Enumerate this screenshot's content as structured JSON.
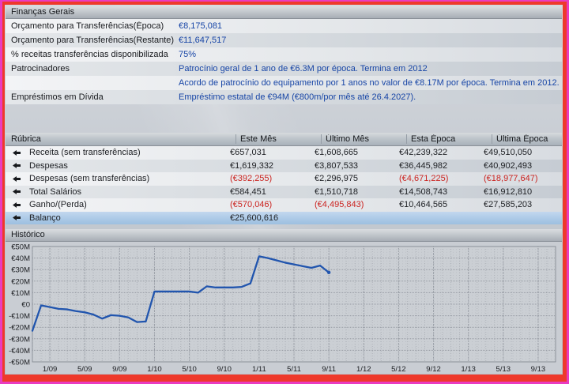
{
  "colors": {
    "value_text": "#1745a6",
    "negative_text": "#cb2420",
    "balance_row_highlight": "#aecbe8",
    "chart_line": "#2155ae"
  },
  "finances_panel": {
    "title": "Finanças Gerais",
    "rows": [
      {
        "label": "Orçamento para Transferências(Época)",
        "value": "€8,175,081"
      },
      {
        "label": "Orçamento para Transferências(Restante)",
        "value": "€11,647,517"
      },
      {
        "label": "% receitas transferências disponibilizada",
        "value": "75%"
      },
      {
        "label": "Patrocinadores",
        "value": "Patrocínio geral de 1 ano de €6.3M por época. Termina em 2012"
      },
      {
        "label": "",
        "value": "Acordo de patrocínio do equipamento por 1 anos no valor de €8.17M por época. Termina em 2012."
      },
      {
        "label": "Empréstimos em Dívida",
        "value": "Empréstimo estatal de €94M (€800m/por mês até 26.4.2027)."
      }
    ]
  },
  "table": {
    "columns": [
      "Rúbrica",
      "Este Mês",
      "Último Mês",
      "Esta Época",
      "Última Época"
    ],
    "rows": [
      {
        "label": "Receita (sem transferências)",
        "values": [
          "€657,031",
          "€1,608,665",
          "€42,239,322",
          "€49,510,050"
        ]
      },
      {
        "label": "Despesas",
        "values": [
          "€1,619,332",
          "€3,807,533",
          "€36,445,982",
          "€40,902,493"
        ]
      },
      {
        "label": "Despesas (sem transferências)",
        "values": [
          "(€392,255)",
          "€2,296,975",
          "(€4,671,225)",
          "(€18,977,647)"
        ]
      },
      {
        "label": "Total Salários",
        "values": [
          "€584,451",
          "€1,510,718",
          "€14,508,743",
          "€16,912,810"
        ]
      },
      {
        "label": "Ganho/(Perda)",
        "values": [
          "(€570,046)",
          "(€4,495,843)",
          "€10,464,565",
          "€27,585,203"
        ]
      },
      {
        "label": "Balanço",
        "values": [
          "€25,600,616",
          "",
          "",
          ""
        ]
      }
    ]
  },
  "history": {
    "title": "Histórico"
  },
  "chart_data": {
    "type": "line",
    "title": "Histórico",
    "xlabel": "",
    "ylabel": "",
    "ylim": [
      -50,
      50
    ],
    "y_unit": "€M",
    "grid": true,
    "x_total_months": 60,
    "x_start_month_label": "11/08",
    "x_tick_first_month_index": 2,
    "x_tick_step_months": 4,
    "x_tick_labels": [
      "1/09",
      "5/09",
      "9/09",
      "1/10",
      "5/10",
      "9/10",
      "1/11",
      "5/11",
      "9/11",
      "1/12",
      "5/12",
      "9/12",
      "1/13",
      "5/13",
      "9/13"
    ],
    "y_tick_labels": [
      "€50M",
      "€40M",
      "€30M",
      "€20M",
      "€10M",
      "€0",
      "-€10M",
      "-€20M",
      "-€30M",
      "-€40M",
      "-€50M"
    ],
    "y_tick_values": [
      50,
      40,
      30,
      20,
      10,
      0,
      -10,
      -20,
      -30,
      -40,
      -50
    ],
    "series": [
      {
        "name": "Balanço",
        "color": "#2155ae",
        "month_labels": [
          "11/08",
          "12/08",
          "1/09",
          "2/09",
          "3/09",
          "4/09",
          "5/09",
          "6/09",
          "7/09",
          "8/09",
          "9/09",
          "10/09",
          "11/09",
          "12/09",
          "1/10",
          "2/10",
          "3/10",
          "4/10",
          "5/10",
          "6/10",
          "7/10",
          "8/10",
          "9/10",
          "10/10",
          "11/10",
          "12/10",
          "1/11",
          "2/11",
          "3/11",
          "4/11",
          "5/11",
          "6/11",
          "7/11",
          "8/11",
          "9/11"
        ],
        "values_meur": [
          -23,
          -1,
          -2.5,
          -4,
          -4.5,
          -6,
          -7,
          -9,
          -12.5,
          -9.5,
          -10,
          -11.5,
          -15.5,
          -15,
          11,
          11,
          11,
          11,
          11,
          10,
          15.5,
          14.5,
          14.5,
          14.5,
          15,
          18,
          41.5,
          40,
          38,
          36,
          34.5,
          33,
          31.5,
          33.5,
          27.5
        ]
      }
    ]
  }
}
